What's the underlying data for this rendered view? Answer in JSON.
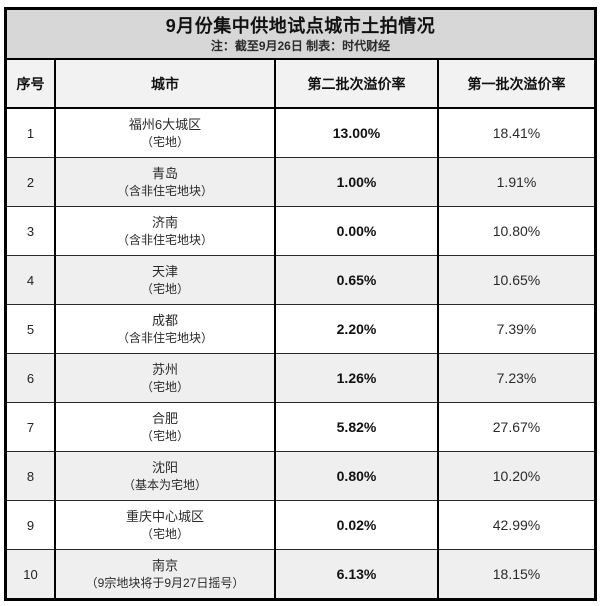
{
  "chart_data": {
    "type": "table",
    "title": "9月份集中供地试点城市土拍情况",
    "note": "注：截至9月26日 制表：时代财经",
    "columns": [
      "序号",
      "城市",
      "第二批次溢价率",
      "第一批次溢价率"
    ],
    "rows": [
      {
        "no": "1",
        "city": "福州6大城区",
        "city_note": "（宅地）",
        "batch2": "13.00%",
        "batch1": "18.41%"
      },
      {
        "no": "2",
        "city": "青岛",
        "city_note": "（含非住宅地块）",
        "batch2": "1.00%",
        "batch1": "1.91%"
      },
      {
        "no": "3",
        "city": "济南",
        "city_note": "（含非住宅地块）",
        "batch2": "0.00%",
        "batch1": "10.80%"
      },
      {
        "no": "4",
        "city": "天津",
        "city_note": "（宅地）",
        "batch2": "0.65%",
        "batch1": "10.65%"
      },
      {
        "no": "5",
        "city": "成都",
        "city_note": "（含非住宅地块）",
        "batch2": "2.20%",
        "batch1": "7.39%"
      },
      {
        "no": "6",
        "city": "苏州",
        "city_note": "（宅地）",
        "batch2": "1.26%",
        "batch1": "7.23%"
      },
      {
        "no": "7",
        "city": "合肥",
        "city_note": "（宅地）",
        "batch2": "5.82%",
        "batch1": "27.67%"
      },
      {
        "no": "8",
        "city": "沈阳",
        "city_note": "（基本为宅地）",
        "batch2": "0.80%",
        "batch1": "10.20%"
      },
      {
        "no": "9",
        "city": "重庆中心城区",
        "city_note": "（宅地）",
        "batch2": "0.02%",
        "batch1": "42.99%"
      },
      {
        "no": "10",
        "city": "南京",
        "city_note": "（9宗地块将于9月27日摇号）",
        "batch2": "6.13%",
        "batch1": "18.15%"
      }
    ]
  },
  "colors": {
    "title_band_bg": "#d7d7d7",
    "header_bg": "#f2f2f2",
    "stripe_bg": "#efefef",
    "border": "#000000"
  }
}
